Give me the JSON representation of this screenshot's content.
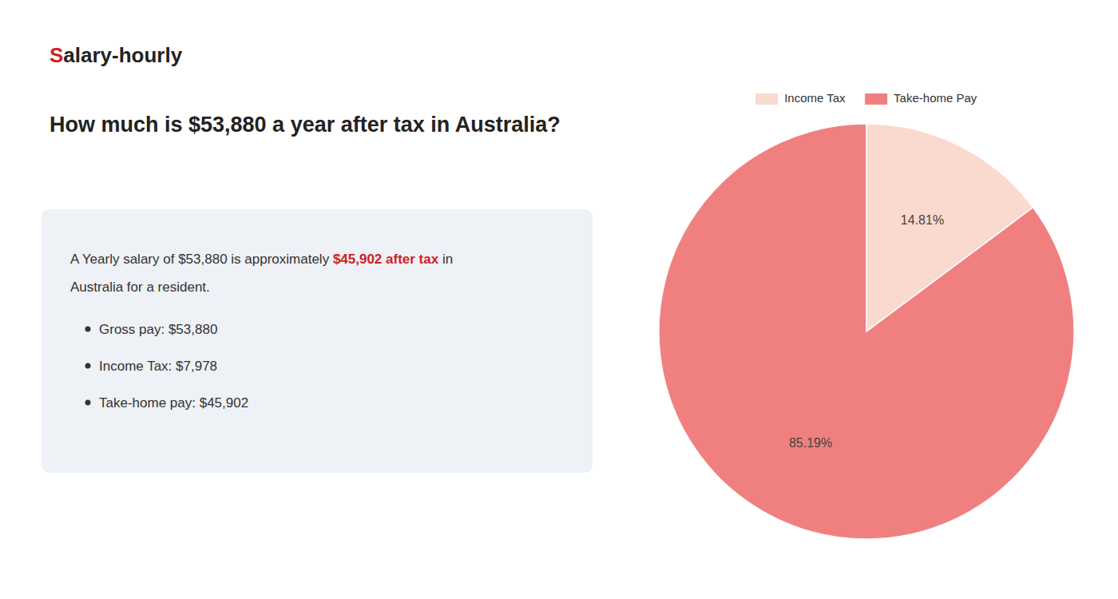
{
  "chart_data": {
    "type": "pie",
    "title": "How much is $53,880 a year after tax in Australia?",
    "categories": [
      "Income Tax",
      "Take-home Pay"
    ],
    "values": [
      14.81,
      85.19
    ],
    "value_labels": [
      "14.81%",
      "85.19%"
    ],
    "colors": [
      "#fad9ce",
      "#f08080"
    ],
    "data_labels": true,
    "legend": "top",
    "annotations": [
      {
        "text": "S",
        "color": "#cc2222"
      },
      {
        "text": "alary-hourly"
      },
      {
        "text": "A Yearly salary of $53,880 is approximately "
      },
      {
        "text": "$45,902 after tax",
        "color": "#cc2222"
      },
      {
        "text": " in"
      },
      {
        "text": "Australia for a resident."
      },
      {
        "text": "Gross pay: $53,880"
      },
      {
        "text": "Income Tax: $7,978"
      },
      {
        "text": "Take-home pay: $45,902"
      }
    ]
  }
}
